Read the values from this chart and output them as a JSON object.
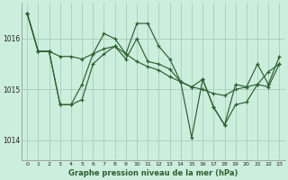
{
  "background_color": "#cceedd",
  "grid_color": "#aaccbb",
  "line_color": "#2d6030",
  "xlabel": "Graphe pression niveau de la mer (hPa)",
  "xlim": [
    -0.5,
    23.5
  ],
  "ylim": [
    1013.6,
    1016.7
  ],
  "yticks": [
    1014,
    1015,
    1016
  ],
  "xticks": [
    0,
    1,
    2,
    3,
    4,
    5,
    6,
    7,
    8,
    9,
    10,
    11,
    12,
    13,
    14,
    15,
    16,
    17,
    18,
    19,
    20,
    21,
    22,
    23
  ],
  "series": [
    {
      "x": [
        0,
        1,
        2,
        3,
        4,
        5,
        6,
        7,
        8,
        9,
        10,
        11,
        12,
        13,
        14,
        15,
        16,
        17,
        18,
        19,
        20,
        21,
        22,
        23
      ],
      "y": [
        1016.5,
        1015.75,
        1015.75,
        1015.65,
        1015.65,
        1015.6,
        1015.7,
        1015.8,
        1015.85,
        1015.7,
        1015.55,
        1015.45,
        1015.38,
        1015.25,
        1015.15,
        1015.05,
        1015.0,
        1014.92,
        1014.88,
        1015.0,
        1015.05,
        1015.1,
        1015.35,
        1015.5
      ]
    },
    {
      "x": [
        0,
        1,
        2,
        3,
        4,
        5,
        6,
        7,
        8,
        9,
        10,
        11,
        12,
        13,
        14,
        15,
        16,
        17,
        18,
        19,
        20,
        21,
        22,
        23
      ],
      "y": [
        1016.5,
        1015.75,
        1015.75,
        1014.7,
        1014.7,
        1014.8,
        1015.5,
        1015.7,
        1015.85,
        1015.6,
        1016.0,
        1015.55,
        1015.5,
        1015.4,
        1015.15,
        1015.05,
        1015.2,
        1014.65,
        1014.3,
        1014.7,
        1014.75,
        1015.1,
        1015.05,
        1015.5
      ]
    },
    {
      "x": [
        0,
        1,
        2,
        3,
        4,
        5,
        6,
        7,
        8,
        9,
        10,
        11,
        12,
        13,
        14,
        15,
        16,
        17,
        18,
        19,
        20,
        21,
        22,
        23
      ],
      "y": [
        1016.5,
        1015.75,
        1015.75,
        1014.7,
        1014.7,
        1015.1,
        1015.7,
        1016.1,
        1016.0,
        1015.7,
        1016.3,
        1016.3,
        1015.85,
        1015.6,
        1015.15,
        1014.05,
        1015.2,
        1014.65,
        1014.3,
        1015.1,
        1015.05,
        1015.5,
        1015.1,
        1015.65
      ]
    }
  ]
}
